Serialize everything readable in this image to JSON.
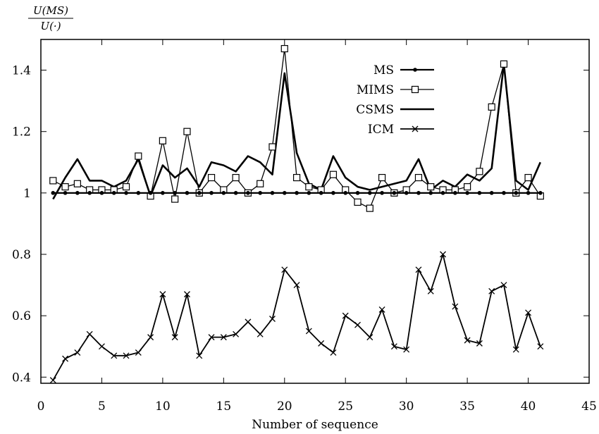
{
  "chart_data": {
    "type": "line",
    "ylabel": {
      "numerator": "U(MS)",
      "denominator": "U(·)"
    },
    "xlabel": "Number of sequence",
    "xlim": [
      0,
      45
    ],
    "ylim": [
      0.38,
      1.5
    ],
    "xticks": [
      0,
      5,
      10,
      15,
      20,
      25,
      30,
      35,
      40,
      45
    ],
    "xtick_labels": [
      "0",
      "5",
      "10",
      "15",
      "20",
      "25",
      "30",
      "35",
      "40",
      "45"
    ],
    "yticks": [
      0.4,
      0.6,
      0.8,
      1.0,
      1.2,
      1.4
    ],
    "ytick_labels": [
      "0.4",
      "0.6",
      "0.8",
      "1",
      "1.2",
      "1.4"
    ],
    "grid": false,
    "legend_position": "top-right",
    "x": [
      1,
      2,
      3,
      4,
      5,
      6,
      7,
      8,
      9,
      10,
      11,
      12,
      13,
      14,
      15,
      16,
      17,
      18,
      19,
      20,
      21,
      22,
      23,
      24,
      25,
      26,
      27,
      28,
      29,
      30,
      31,
      32,
      33,
      34,
      35,
      36,
      37,
      38,
      39,
      40,
      41
    ],
    "series": [
      {
        "name": "MS",
        "marker": "dot",
        "values": [
          1,
          1,
          1,
          1,
          1,
          1,
          1,
          1,
          1,
          1,
          1,
          1,
          1,
          1,
          1,
          1,
          1,
          1,
          1,
          1,
          1,
          1,
          1,
          1,
          1,
          1,
          1,
          1,
          1,
          1,
          1,
          1,
          1,
          1,
          1,
          1,
          1,
          1,
          1,
          1,
          1
        ]
      },
      {
        "name": "MIMS",
        "marker": "square",
        "values": [
          1.04,
          1.02,
          1.03,
          1.01,
          1.01,
          1.01,
          1.02,
          1.12,
          0.99,
          1.17,
          0.98,
          1.2,
          1.0,
          1.05,
          1.01,
          1.05,
          1.0,
          1.03,
          1.15,
          1.47,
          1.05,
          1.02,
          1.01,
          1.06,
          1.01,
          0.97,
          0.95,
          1.05,
          1.0,
          1.01,
          1.05,
          1.02,
          1.01,
          1.01,
          1.02,
          1.07,
          1.28,
          1.42,
          1.0,
          1.05,
          0.99
        ]
      },
      {
        "name": "CSMS",
        "marker": "none",
        "values": [
          0.98,
          1.05,
          1.11,
          1.04,
          1.04,
          1.02,
          1.04,
          1.11,
          0.99,
          1.09,
          1.05,
          1.08,
          1.02,
          1.1,
          1.09,
          1.07,
          1.12,
          1.1,
          1.06,
          1.39,
          1.13,
          1.03,
          1.01,
          1.12,
          1.05,
          1.02,
          1.01,
          1.02,
          1.03,
          1.04,
          1.11,
          1.01,
          1.04,
          1.02,
          1.06,
          1.04,
          1.08,
          1.42,
          1.04,
          1.01,
          1.1
        ]
      },
      {
        "name": "ICM",
        "marker": "cross",
        "values": [
          0.39,
          0.46,
          0.48,
          0.54,
          0.5,
          0.47,
          0.47,
          0.48,
          0.53,
          0.67,
          0.53,
          0.67,
          0.47,
          0.53,
          0.53,
          0.54,
          0.58,
          0.54,
          0.59,
          0.75,
          0.7,
          0.55,
          0.51,
          0.48,
          0.6,
          0.57,
          0.53,
          0.62,
          0.5,
          0.49,
          0.75,
          0.68,
          0.8,
          0.63,
          0.52,
          0.51,
          0.68,
          0.7,
          0.49,
          0.61,
          0.5
        ]
      }
    ]
  }
}
